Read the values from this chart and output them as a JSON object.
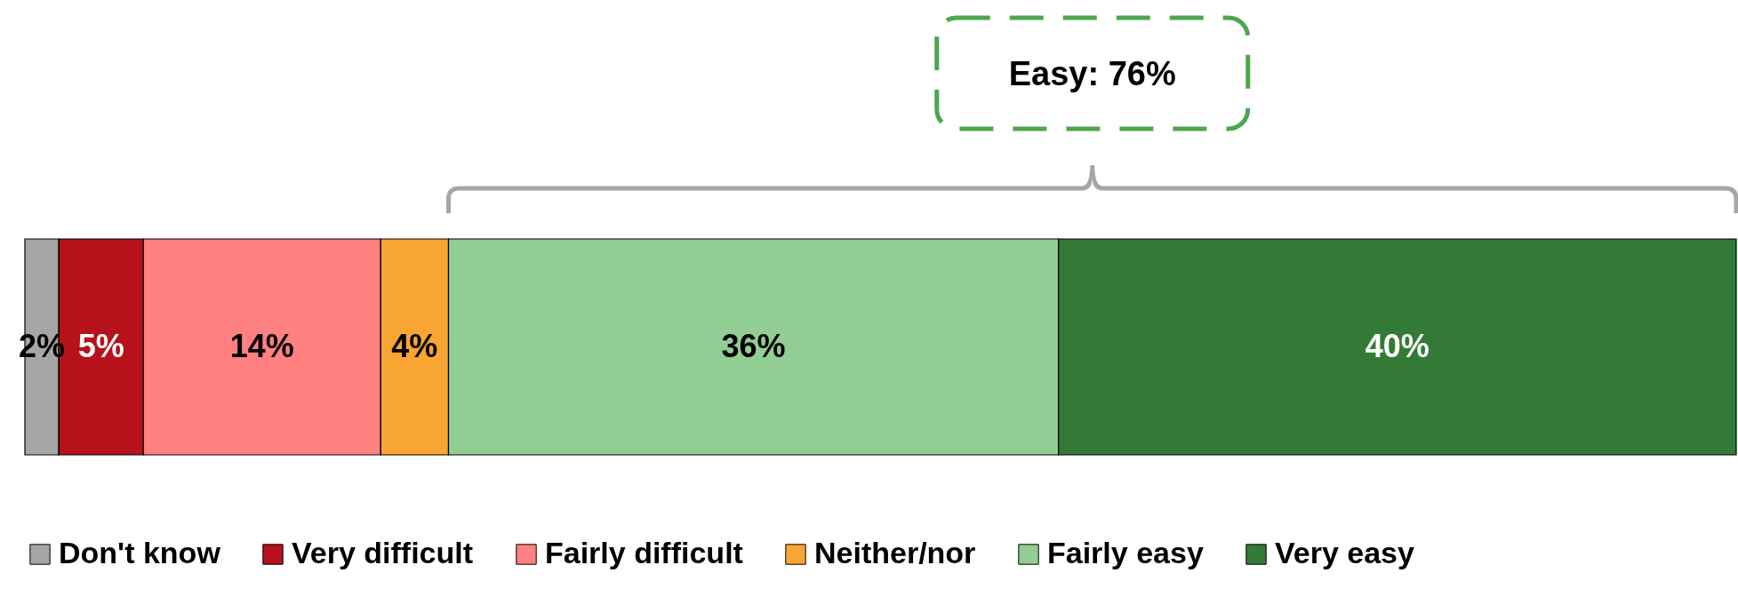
{
  "chart_data": {
    "type": "bar",
    "orientation": "horizontal",
    "stacked": true,
    "legend": "bottom",
    "categories": [
      null
    ],
    "series": [
      {
        "name": "Don't know",
        "color": "#a6a6a6",
        "values": [
          2
        ],
        "value_labels": [
          "2%"
        ]
      },
      {
        "name": "Very difficult",
        "color": "#b5121b",
        "values": [
          5
        ],
        "value_labels": [
          "5%"
        ]
      },
      {
        "name": "Fairly difficult",
        "color": "#ff8080",
        "values": [
          14
        ],
        "value_labels": [
          "14%"
        ]
      },
      {
        "name": "Neither/nor",
        "color": "#f9a533",
        "values": [
          4
        ],
        "value_labels": [
          "4%"
        ]
      },
      {
        "name": "Fairly easy",
        "color": "#92cd93",
        "values": [
          36
        ],
        "value_labels": [
          "36%"
        ]
      },
      {
        "name": "Very easy",
        "color": "#347a37",
        "values": [
          40
        ],
        "value_labels": [
          "40%"
        ]
      }
    ],
    "annotations": [
      "Easy: 76%"
    ]
  }
}
